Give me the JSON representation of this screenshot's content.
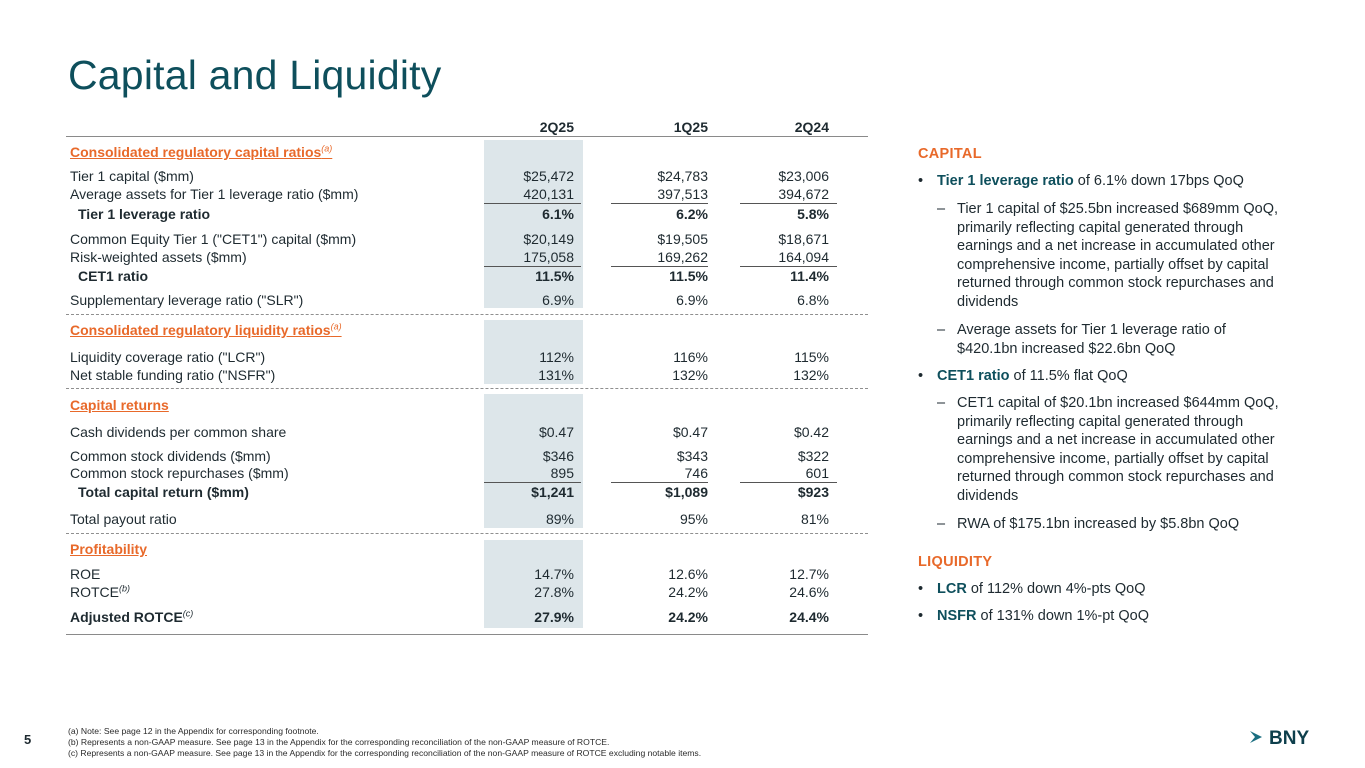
{
  "title": "Capital and Liquidity",
  "columns": [
    "2Q25",
    "1Q25",
    "2Q24"
  ],
  "sections": {
    "capital_ratios": "Consolidated regulatory capital ratios",
    "liquidity_ratios": "Consolidated regulatory liquidity ratios",
    "capital_returns": "Capital returns",
    "profitability": "Profitability"
  },
  "sup": {
    "a": "(a)",
    "b": "(b)",
    "c": "(c)"
  },
  "rows": {
    "tier1_capital": {
      "label": "Tier 1 capital ($mm)",
      "v": [
        "$25,472",
        "$24,783",
        "$23,006"
      ]
    },
    "avg_assets": {
      "label": "Average assets for Tier 1 leverage ratio ($mm)",
      "v": [
        "420,131",
        "397,513",
        "394,672"
      ]
    },
    "tier1_lev": {
      "label": "Tier 1 leverage ratio",
      "v": [
        "6.1%",
        "6.2%",
        "5.8%"
      ]
    },
    "cet1_capital": {
      "label": "Common Equity Tier 1 (\"CET1\") capital ($mm)",
      "v": [
        "$20,149",
        "$19,505",
        "$18,671"
      ]
    },
    "rwa": {
      "label": "Risk-weighted assets ($mm)",
      "v": [
        "175,058",
        "169,262",
        "164,094"
      ]
    },
    "cet1_ratio": {
      "label": "CET1 ratio",
      "v": [
        "11.5%",
        "11.5%",
        "11.4%"
      ]
    },
    "slr": {
      "label": "Supplementary leverage ratio (\"SLR\")",
      "v": [
        "6.9%",
        "6.9%",
        "6.8%"
      ]
    },
    "lcr": {
      "label": "Liquidity coverage ratio (\"LCR\")",
      "v": [
        "112%",
        "116%",
        "115%"
      ]
    },
    "nsfr": {
      "label": "Net stable funding ratio (\"NSFR\")",
      "v": [
        "131%",
        "132%",
        "132%"
      ]
    },
    "cash_div": {
      "label": "Cash dividends per common share",
      "v": [
        "$0.47",
        "$0.47",
        "$0.42"
      ]
    },
    "stock_div": {
      "label": "Common stock dividends ($mm)",
      "v": [
        "$346",
        "$343",
        "$322"
      ]
    },
    "repurch": {
      "label": "Common stock repurchases ($mm)",
      "v": [
        "895",
        "746",
        "601"
      ]
    },
    "total_return": {
      "label": "Total capital return ($mm)",
      "v": [
        "$1,241",
        "$1,089",
        "$923"
      ]
    },
    "payout": {
      "label": "Total payout ratio",
      "v": [
        "89%",
        "95%",
        "81%"
      ]
    },
    "roe": {
      "label": "ROE",
      "v": [
        "14.7%",
        "12.6%",
        "12.7%"
      ]
    },
    "rotce": {
      "label": "ROTCE",
      "v": [
        "27.8%",
        "24.2%",
        "24.6%"
      ]
    },
    "adj_rotce": {
      "label": "Adjusted ROTCE",
      "v": [
        "27.9%",
        "24.2%",
        "24.4%"
      ]
    }
  },
  "panel": {
    "capital_heading": "CAPITAL",
    "b1_hl": "Tier 1 leverage ratio",
    "b1_rest": " of 6.1% down 17bps QoQ",
    "b1_s1": "Tier 1 capital of $25.5bn increased $689mm QoQ, primarily reflecting capital generated through earnings and a net increase in accumulated other comprehensive income, partially offset by capital returned through common stock repurchases and dividends",
    "b1_s2": "Average assets for Tier 1 leverage ratio of $420.1bn increased $22.6bn QoQ",
    "b2_hl": "CET1 ratio",
    "b2_rest": " of 11.5% flat QoQ",
    "b2_s1": "CET1 capital of $20.1bn increased $644mm QoQ, primarily reflecting capital generated through earnings and a net increase in accumulated other comprehensive income, partially offset by capital returned through common stock repurchases and dividends",
    "b2_s2": "RWA of $175.1bn increased by $5.8bn QoQ",
    "liquidity_heading": "LIQUIDITY",
    "b3_hl": "LCR",
    "b3_rest": " of 112% down 4%-pts QoQ",
    "b4_hl": "NSFR",
    "b4_rest": " of 131% down 1%-pt QoQ",
    "bullet": "•",
    "dash": "–"
  },
  "page_number": "5",
  "footnotes": [
    "(a) Note: See page 12 in the Appendix for corresponding footnote.",
    "(b) Represents a non-GAAP measure. See page 13 in the Appendix for the corresponding reconciliation of the non-GAAP measure of ROTCE.",
    "(c)  Represents a non-GAAP measure. See page 13 in the Appendix for the corresponding reconciliation of the non-GAAP measure of ROTCE excluding notable items."
  ],
  "logo_text": "BNY",
  "colors": {
    "title": "#0e4f5c",
    "accent": "#e8692a",
    "shade": "#dde6ea"
  }
}
